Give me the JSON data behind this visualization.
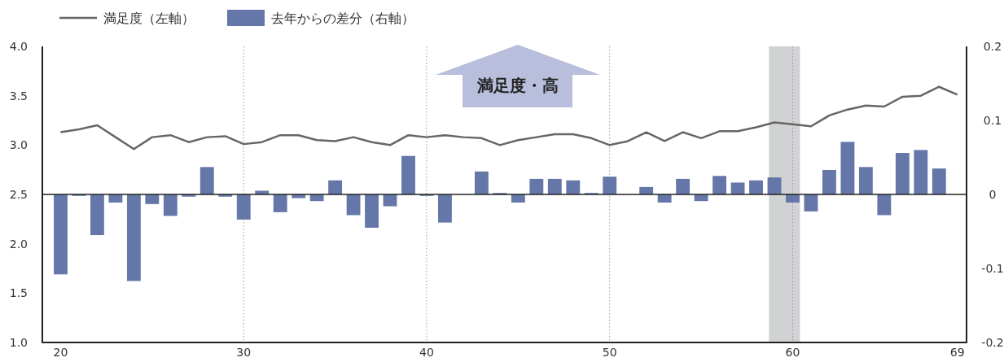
{
  "chart_data": {
    "type": "bar",
    "x": [
      20,
      21,
      22,
      23,
      24,
      25,
      26,
      27,
      28,
      29,
      30,
      31,
      32,
      33,
      34,
      35,
      36,
      37,
      38,
      39,
      40,
      41,
      42,
      43,
      44,
      45,
      46,
      47,
      48,
      49,
      50,
      51,
      52,
      53,
      54,
      55,
      56,
      57,
      58,
      59,
      60,
      61,
      62,
      63,
      64,
      65,
      66,
      67,
      68,
      69
    ],
    "series": [
      {
        "name": "満足度（左軸）",
        "type": "line",
        "axis": "y",
        "color": "#666666",
        "values": [
          3.13,
          3.16,
          3.2,
          3.08,
          2.96,
          3.08,
          3.1,
          3.03,
          3.08,
          3.09,
          3.01,
          3.03,
          3.1,
          3.1,
          3.05,
          3.04,
          3.08,
          3.03,
          3.0,
          3.1,
          3.08,
          3.1,
          3.08,
          3.07,
          3.0,
          3.05,
          3.08,
          3.11,
          3.11,
          3.07,
          3.0,
          3.04,
          3.13,
          3.04,
          3.13,
          3.07,
          3.14,
          3.14,
          3.18,
          3.23,
          3.21,
          3.19,
          3.3,
          3.36,
          3.4,
          3.39,
          3.49,
          3.5,
          3.59,
          3.51
        ]
      },
      {
        "name": "去年からの差分（右軸）",
        "axis": "y2",
        "color": "#6477a8",
        "values": [
          -0.108,
          -0.002,
          -0.055,
          -0.011,
          -0.117,
          -0.013,
          -0.029,
          -0.003,
          0.037,
          -0.003,
          -0.034,
          0.005,
          -0.024,
          -0.005,
          -0.009,
          0.019,
          -0.028,
          -0.045,
          -0.016,
          0.052,
          -0.002,
          -0.038,
          0,
          0.031,
          0.002,
          -0.011,
          0.021,
          0.021,
          0.019,
          0.002,
          0.024,
          0,
          0.01,
          -0.011,
          0.021,
          -0.009,
          0.025,
          0.016,
          0.019,
          0.023,
          -0.011,
          -0.023,
          0.033,
          0.071,
          0.037,
          -0.028,
          0.056,
          0.06,
          0.035,
          null
        ]
      }
    ],
    "xlim": [
      19,
      69.5
    ],
    "xticks": [
      20,
      30,
      40,
      50,
      60,
      69
    ],
    "ylim": [
      1,
      4
    ],
    "yticks": [
      {
        "value": 1,
        "label": "1.0"
      },
      {
        "value": 1.5,
        "label": "1.5"
      },
      {
        "value": 2,
        "label": "2.0"
      },
      {
        "value": 2.5,
        "label": "2.5"
      },
      {
        "value": 3,
        "label": "3.0"
      },
      {
        "value": 3.5,
        "label": "3.5"
      },
      {
        "value": 4,
        "label": "4.0"
      }
    ],
    "y2lim": [
      -0.2,
      0.2
    ],
    "y2ticks": [
      -0.2,
      -0.1,
      0,
      0.1,
      0.2
    ],
    "ref_lines": [
      {
        "axis": "x",
        "value": 30,
        "color": "#999999",
        "line_style": "dotted"
      },
      {
        "axis": "x",
        "value": 40,
        "color": "#999999",
        "line_style": "dotted"
      },
      {
        "axis": "x",
        "value": 50,
        "color": "#999999",
        "line_style": "dotted"
      },
      {
        "axis": "x",
        "value": 60,
        "color": "#999999",
        "line_style": "dotted"
      }
    ],
    "bands": [
      {
        "axis": "x",
        "from": 58.7,
        "to": 60.4,
        "color": "#d1d2d4"
      }
    ],
    "annotations": [
      "満足度・高"
    ],
    "legend": "top left"
  }
}
